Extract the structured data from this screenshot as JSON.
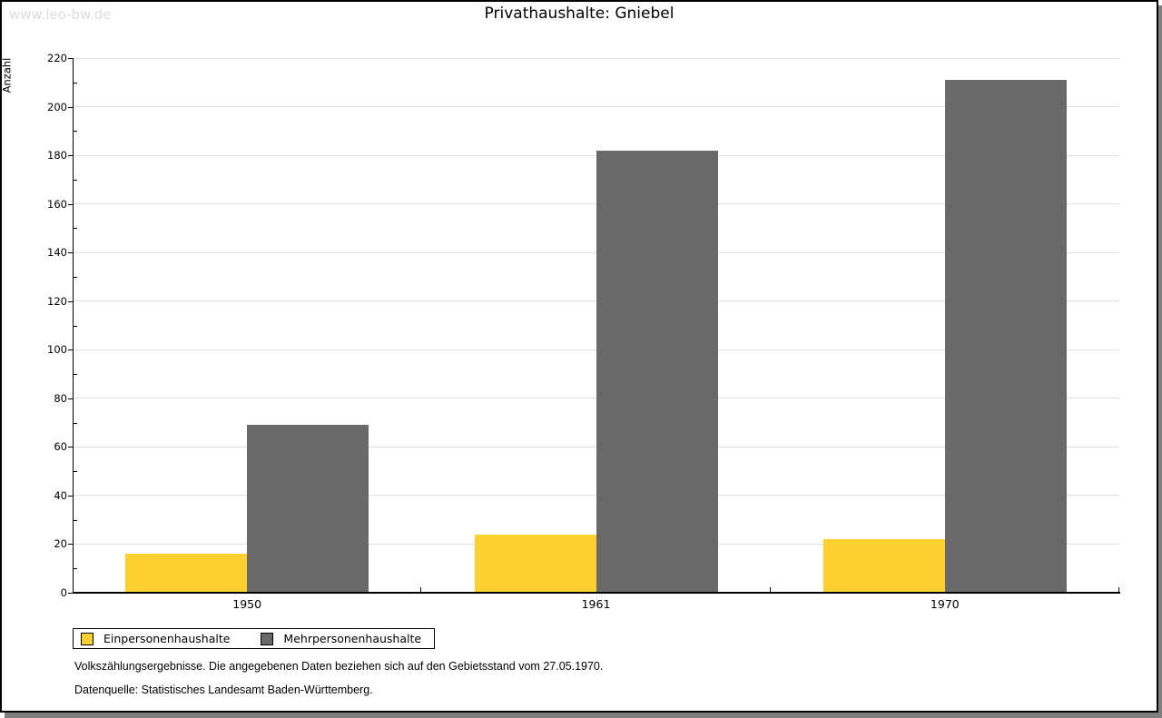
{
  "watermark": "www.leo-bw.de",
  "chart_data": {
    "type": "bar",
    "title": "Privathaushalte: Gniebel",
    "ylabel": "Anzahl",
    "xlabel": "",
    "categories": [
      "1950",
      "1961",
      "1970"
    ],
    "series": [
      {
        "name": "Einpersonenhaushalte",
        "color": "#FCD12F",
        "values": [
          16,
          24,
          22
        ]
      },
      {
        "name": "Mehrpersonenhaushalte",
        "color": "#696969",
        "values": [
          69,
          182,
          211
        ]
      }
    ],
    "ylim": [
      0,
      220
    ],
    "y_major_step": 20,
    "y_minor_step": 10,
    "grid": true,
    "legend_position": "bottom-left",
    "gridline_color": "#e0e0e0"
  },
  "footnotes": {
    "line1": "Volkszählungsergebnisse. Die angegebenen Daten beziehen sich auf den Gebietsstand vom 27.05.1970.",
    "line2": "Datenquelle: Statistisches Landesamt Baden-Württemberg."
  }
}
